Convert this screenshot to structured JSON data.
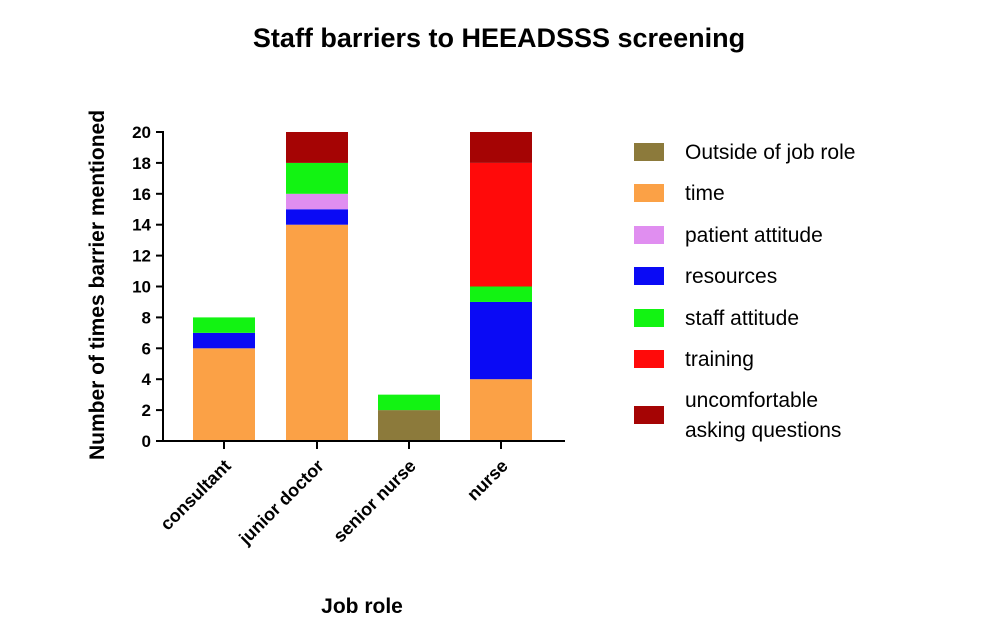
{
  "chart_data": {
    "type": "bar",
    "stacked": true,
    "title": "Staff barriers to HEEADSSS screening",
    "xlabel": "Job role",
    "ylabel": "Number of times barrier mentioned",
    "ylim": [
      0,
      20
    ],
    "yticks": [
      "0",
      "2",
      "4",
      "6",
      "8",
      "10",
      "12",
      "14",
      "16",
      "18",
      "20"
    ],
    "categories": [
      "consultant",
      "junior doctor",
      "senior nurse",
      "nurse"
    ],
    "stack_order": [
      "Outside of job role",
      "time",
      "resources",
      "patient attitude",
      "staff attitude",
      "training",
      "uncomfortable asking questions"
    ],
    "series": [
      {
        "name": "Outside of job role",
        "color": "#8c7a3b",
        "values": [
          0,
          0,
          2,
          0
        ]
      },
      {
        "name": "time",
        "color": "#fba146",
        "values": [
          6,
          14,
          0,
          4
        ]
      },
      {
        "name": "patient attitude",
        "color": "#e08ef0",
        "values": [
          0,
          1,
          0,
          0
        ]
      },
      {
        "name": "resources",
        "color": "#0a0af5",
        "values": [
          1,
          1,
          0,
          5
        ]
      },
      {
        "name": "staff attitude",
        "color": "#12f312",
        "values": [
          1,
          2,
          1,
          1
        ]
      },
      {
        "name": "training",
        "color": "#ff0a0a",
        "values": [
          0,
          0,
          0,
          8
        ]
      },
      {
        "name": "uncomfortable asking questions",
        "color": "#a50404",
        "values": [
          0,
          2,
          0,
          2
        ]
      }
    ],
    "legend": {
      "placement": "right",
      "items": [
        {
          "series": "Outside of job role",
          "lines": [
            "Outside of job role"
          ]
        },
        {
          "series": "time",
          "lines": [
            "time"
          ]
        },
        {
          "series": "patient attitude",
          "lines": [
            "patient attitude"
          ]
        },
        {
          "series": "resources",
          "lines": [
            "resources"
          ]
        },
        {
          "series": "staff attitude",
          "lines": [
            "staff attitude"
          ]
        },
        {
          "series": "training",
          "lines": [
            "training"
          ]
        },
        {
          "series": "uncomfortable asking questions",
          "lines": [
            "uncomfortable",
            "asking questions"
          ]
        }
      ]
    },
    "grid": false
  }
}
